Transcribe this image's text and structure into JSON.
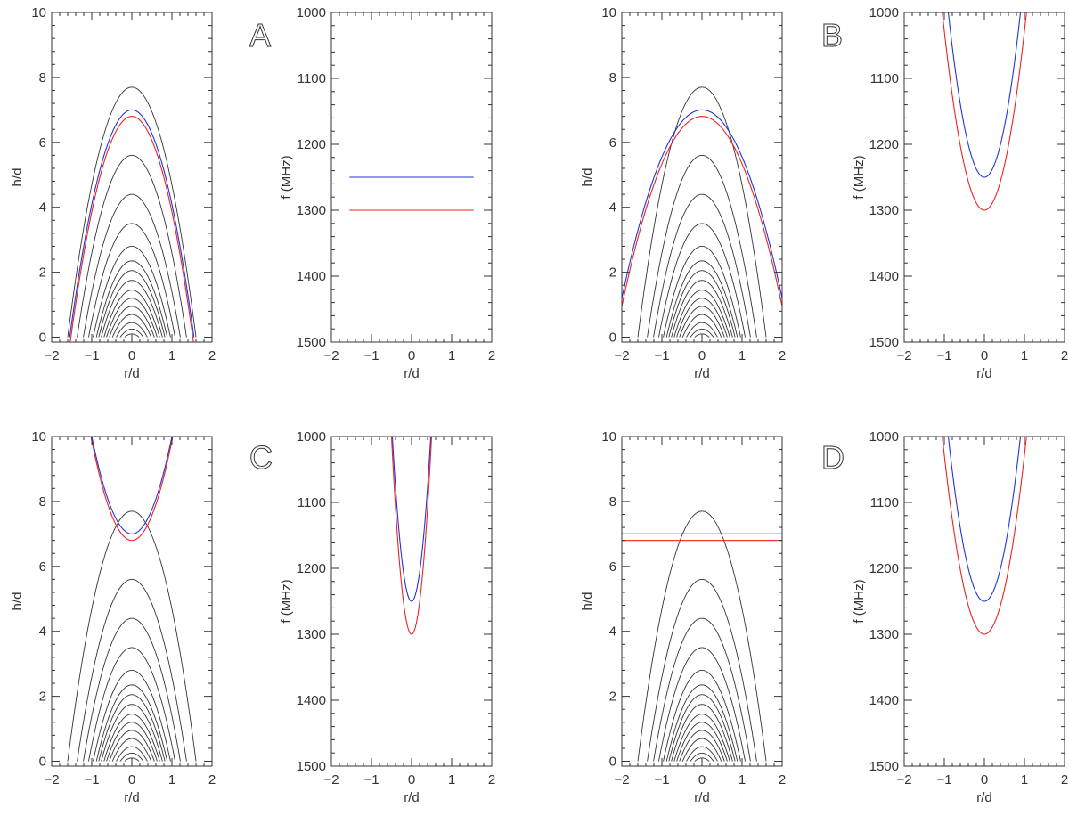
{
  "figure": {
    "description_labels": [
      "A",
      "B",
      "C",
      "D"
    ]
  },
  "colors": {
    "axis": "#333333",
    "field_lines": "#333333",
    "blue": "#2233dd",
    "red": "#ee2222"
  },
  "chart_data": [
    {
      "id": "A-height",
      "type": "line",
      "panel": "A",
      "xlabel": "r/d",
      "ylabel": "h/d",
      "xlim": [
        -2,
        2
      ],
      "ylim": [
        -0.15,
        10
      ],
      "xticks": [
        -2,
        -1,
        0,
        1,
        2
      ],
      "yticks": [
        0,
        2,
        4,
        6,
        8,
        10
      ],
      "field_line_apex_heights": [
        0.1,
        0.25,
        0.45,
        0.7,
        0.95,
        1.2,
        1.45,
        1.75,
        2.05,
        2.35,
        2.8,
        3.5,
        4.4,
        5.6,
        7.7
      ],
      "field_line_footpoint_half_width": 1.6,
      "series": [
        {
          "name": "blue",
          "shape": "parabola",
          "apex": 7.0,
          "x_range": [
            -1.55,
            1.55
          ],
          "zero_at": 1.55
        },
        {
          "name": "red",
          "shape": "parabola",
          "apex": 6.8,
          "x_range": [
            -1.55,
            1.55
          ],
          "zero_at": 1.52
        }
      ]
    },
    {
      "id": "A-frequency",
      "type": "line",
      "panel": "A",
      "xlabel": "r/d",
      "ylabel": "f (MHz)",
      "xlim": [
        -2,
        2
      ],
      "ylim": [
        1000,
        1500
      ],
      "y_inverted": true,
      "xticks": [
        -2,
        -1,
        0,
        1,
        2
      ],
      "yticks": [
        1000,
        1100,
        1200,
        1300,
        1400,
        1500
      ],
      "series": [
        {
          "name": "blue",
          "shape": "flat",
          "value": 1250,
          "x_range": [
            -1.55,
            1.55
          ]
        },
        {
          "name": "red",
          "shape": "flat",
          "value": 1300,
          "x_range": [
            -1.55,
            1.55
          ]
        }
      ]
    },
    {
      "id": "B-height",
      "type": "line",
      "panel": "B",
      "xlabel": "r/d",
      "ylabel": "h/d",
      "xlim": [
        -2,
        2
      ],
      "ylim": [
        -0.15,
        10
      ],
      "xticks": [
        -2,
        -1,
        0,
        1,
        2
      ],
      "yticks": [
        0,
        2,
        4,
        6,
        8,
        10
      ],
      "field_line_apex_heights": [
        0.1,
        0.25,
        0.45,
        0.7,
        0.95,
        1.2,
        1.45,
        1.75,
        2.05,
        2.35,
        2.8,
        3.5,
        4.4,
        5.6,
        7.7
      ],
      "field_line_footpoint_half_width": 1.6,
      "series": [
        {
          "name": "blue",
          "shape": "parabola",
          "apex": 7.0,
          "x_range": [
            -2,
            2
          ],
          "value_at_edge": 1.2
        },
        {
          "name": "red",
          "shape": "parabola",
          "apex": 6.8,
          "x_range": [
            -2,
            2
          ],
          "value_at_edge": 0.95
        }
      ]
    },
    {
      "id": "B-frequency",
      "type": "line",
      "panel": "B",
      "xlabel": "r/d",
      "ylabel": "f (MHz)",
      "xlim": [
        -2,
        2
      ],
      "ylim": [
        1000,
        1500
      ],
      "y_inverted": true,
      "xticks": [
        -2,
        -1,
        0,
        1,
        2
      ],
      "yticks": [
        1000,
        1100,
        1200,
        1300,
        1400,
        1500
      ],
      "series": [
        {
          "name": "blue",
          "shape": "parabola",
          "apex": 1250,
          "reaches_1000_at": 0.9
        },
        {
          "name": "red",
          "shape": "parabola",
          "apex": 1300,
          "reaches_1000_at": 1.05
        }
      ]
    },
    {
      "id": "C-height",
      "type": "line",
      "panel": "C",
      "xlabel": "r/d",
      "ylabel": "h/d",
      "xlim": [
        -2,
        2
      ],
      "ylim": [
        -0.15,
        10
      ],
      "xticks": [
        -2,
        -1,
        0,
        1,
        2
      ],
      "yticks": [
        0,
        2,
        4,
        6,
        8,
        10
      ],
      "field_line_apex_heights": [
        0.1,
        0.25,
        0.45,
        0.7,
        0.95,
        1.2,
        1.45,
        1.75,
        2.05,
        2.35,
        2.8,
        3.5,
        4.4,
        5.6,
        7.7
      ],
      "field_line_footpoint_half_width": 1.6,
      "series": [
        {
          "name": "blue",
          "shape": "upward-parabola",
          "apex": 7.0,
          "reaches_10_at": 1.0
        },
        {
          "name": "red",
          "shape": "upward-parabola",
          "apex": 6.8,
          "reaches_10_at": 1.02
        }
      ]
    },
    {
      "id": "C-frequency",
      "type": "line",
      "panel": "C",
      "xlabel": "r/d",
      "ylabel": "f (MHz)",
      "xlim": [
        -2,
        2
      ],
      "ylim": [
        1000,
        1500
      ],
      "y_inverted": true,
      "xticks": [
        -2,
        -1,
        0,
        1,
        2
      ],
      "yticks": [
        1000,
        1100,
        1200,
        1300,
        1400,
        1500
      ],
      "series": [
        {
          "name": "blue",
          "shape": "parabola",
          "apex": 1250,
          "reaches_1000_at": 0.48
        },
        {
          "name": "red",
          "shape": "parabola",
          "apex": 1300,
          "reaches_1000_at": 0.5
        }
      ]
    },
    {
      "id": "D-height",
      "type": "line",
      "panel": "D",
      "xlabel": "r/d",
      "ylabel": "h/d",
      "xlim": [
        -2,
        2
      ],
      "ylim": [
        -0.15,
        10
      ],
      "xticks": [
        -2,
        -1,
        0,
        1,
        2
      ],
      "yticks": [
        0,
        2,
        4,
        6,
        8,
        10
      ],
      "field_line_apex_heights": [
        0.1,
        0.25,
        0.45,
        0.7,
        0.95,
        1.2,
        1.45,
        1.75,
        2.05,
        2.35,
        2.8,
        3.5,
        4.4,
        5.6,
        7.7
      ],
      "field_line_footpoint_half_width": 1.6,
      "series": [
        {
          "name": "blue",
          "shape": "flat",
          "value": 7.0,
          "x_range": [
            -2,
            2
          ]
        },
        {
          "name": "red",
          "shape": "flat",
          "value": 6.8,
          "x_range": [
            -2,
            2
          ]
        }
      ]
    },
    {
      "id": "D-frequency",
      "type": "line",
      "panel": "D",
      "xlabel": "r/d",
      "ylabel": "f (MHz)",
      "xlim": [
        -2,
        2
      ],
      "ylim": [
        1000,
        1500
      ],
      "y_inverted": true,
      "xticks": [
        -2,
        -1,
        0,
        1,
        2
      ],
      "yticks": [
        1000,
        1100,
        1200,
        1300,
        1400,
        1500
      ],
      "series": [
        {
          "name": "blue",
          "shape": "parabola",
          "apex": 1250,
          "reaches_1000_at": 0.9
        },
        {
          "name": "red",
          "shape": "parabola",
          "apex": 1300,
          "reaches_1000_at": 1.05
        }
      ]
    }
  ]
}
